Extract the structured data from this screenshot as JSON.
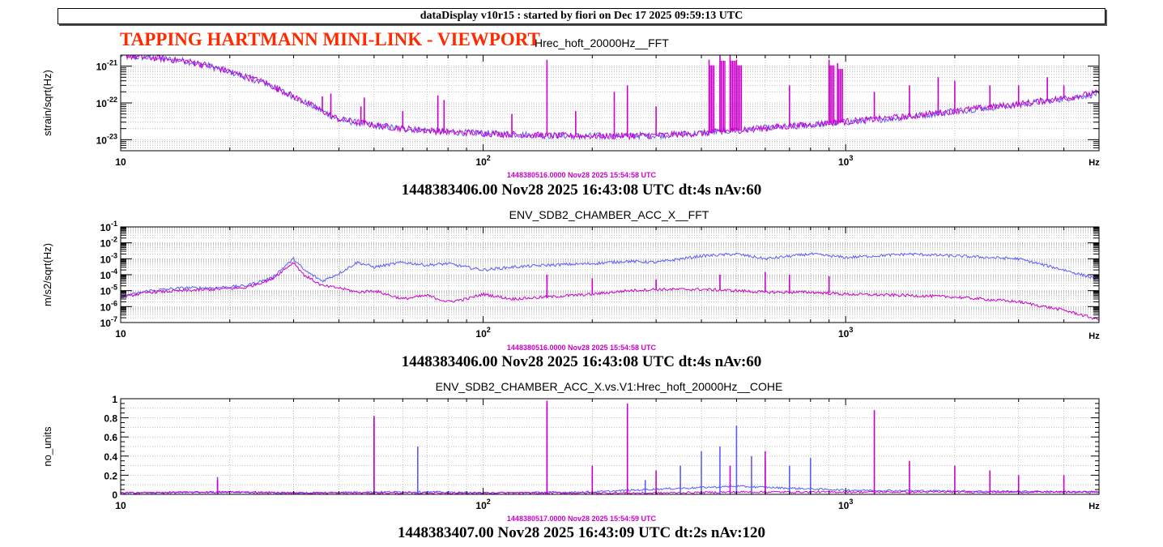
{
  "header": {
    "title_bar": "dataDisplay v10r15 : started by fiori on Dec 17 2025 09:59:13 UTC",
    "page_heading": "TAPPING HARTMANN MINI-LINK - VIEWPORT"
  },
  "colors": {
    "reference_trace": "#5b5bff",
    "live_trace": "#cc00cc",
    "heading": "#ff2a00"
  },
  "chart_data": [
    {
      "type": "line",
      "title": "Hrec_hoft_20000Hz__FFT",
      "ylabel": "strain/sqrt(Hz)",
      "x_unit": "Hz",
      "x_scale": "log",
      "y_scale": "log",
      "xlim": [
        10,
        5000
      ],
      "ylim": [
        5e-24,
        2e-21
      ],
      "x_tick_labels": [
        {
          "base": "10",
          "exp": ""
        },
        {
          "base": "10",
          "exp": "2"
        },
        {
          "base": "10",
          "exp": "3"
        }
      ],
      "y_tick_labels": [
        {
          "base": "10",
          "exp": "-21"
        },
        {
          "base": "10",
          "exp": "-22"
        },
        {
          "base": "10",
          "exp": "-23"
        }
      ],
      "grid": true,
      "series": [
        {
          "color": "#5b5bff",
          "x": [
            10,
            11,
            13,
            15,
            17,
            20,
            25,
            30,
            40,
            50,
            60,
            70,
            80,
            100,
            120,
            150,
            200,
            300,
            400,
            500,
            700,
            1000,
            1500,
            2000,
            3000,
            4000,
            5000
          ],
          "y": [
            2e-21,
            1.8e-21,
            1.6e-21,
            1.4e-21,
            1.1e-21,
            7e-22,
            3.5e-22,
            1.5e-22,
            3.5e-23,
            2.4e-23,
            2e-23,
            1.8e-23,
            1.6e-23,
            1.5e-23,
            1.4e-23,
            1.3e-23,
            1.25e-23,
            1.3e-23,
            1.5e-23,
            1.8e-23,
            2.3e-23,
            3e-23,
            4.2e-23,
            6e-23,
            9e-23,
            1.3e-22,
            1.8e-22
          ]
        },
        {
          "color": "#cc00cc",
          "x": [
            10,
            11,
            13,
            15,
            17,
            20,
            25,
            30,
            40,
            50,
            60,
            70,
            80,
            100,
            120,
            150,
            200,
            300,
            400,
            500,
            700,
            1000,
            1500,
            2000,
            3000,
            4000,
            5000
          ],
          "y": [
            2e-21,
            1.8e-21,
            1.6e-21,
            1.4e-21,
            1.1e-21,
            7e-22,
            3.6e-22,
            1.5e-22,
            3.6e-23,
            2.5e-23,
            2e-23,
            1.8e-23,
            1.6e-23,
            1.5e-23,
            1.4e-23,
            1.3e-23,
            1.25e-23,
            1.3e-23,
            1.5e-23,
            1.8e-23,
            2.3e-23,
            3.1e-23,
            4.3e-23,
            6.1e-23,
            9.2e-23,
            1.35e-22,
            1.9e-22
          ]
        }
      ],
      "lines_hz": [
        [
          16,
          1e-21
        ],
        [
          27,
          2e-22
        ],
        [
          36,
          1.5e-22
        ],
        [
          38,
          1.8e-22
        ],
        [
          46,
          8e-23
        ],
        [
          47,
          1.4e-22
        ],
        [
          60,
          6e-23
        ],
        [
          75,
          1.6e-22
        ],
        [
          78,
          1.2e-22
        ],
        [
          120,
          5e-23
        ],
        [
          150,
          1.5e-21
        ],
        [
          180,
          6e-23
        ],
        [
          230,
          2e-22
        ],
        [
          250,
          3e-22
        ],
        [
          300,
          8e-23
        ],
        [
          420,
          1.5e-21
        ],
        [
          450,
          2e-21
        ],
        [
          480,
          2e-21
        ],
        [
          500,
          1.5e-21
        ],
        [
          700,
          3e-22
        ],
        [
          900,
          1.5e-21
        ],
        [
          950,
          1.2e-21
        ],
        [
          1200,
          2e-22
        ],
        [
          1500,
          3e-22
        ],
        [
          1800,
          5e-22
        ],
        [
          2000,
          4e-22
        ],
        [
          2500,
          3e-22
        ],
        [
          3000,
          3e-22
        ],
        [
          3600,
          5e-22
        ],
        [
          4000,
          3e-22
        ]
      ],
      "timestamp_small": "1448380516.0000 Nov28 2025 15:54:58 UTC",
      "timestamp_big": "1448383406.00 Nov28 2025 16:43:08 UTC dt:4s nAv:60"
    },
    {
      "type": "line",
      "title": "ENV_SDB2_CHAMBER_ACC_X__FFT",
      "ylabel": "m/s2/sqrt(Hz)",
      "x_unit": "Hz",
      "x_scale": "log",
      "y_scale": "log",
      "xlim": [
        10,
        5000
      ],
      "ylim": [
        1e-07,
        0.1
      ],
      "x_tick_labels": [
        {
          "base": "10",
          "exp": ""
        },
        {
          "base": "10",
          "exp": "2"
        },
        {
          "base": "10",
          "exp": "3"
        }
      ],
      "y_tick_labels": [
        {
          "base": "10",
          "exp": "-1"
        },
        {
          "base": "10",
          "exp": "-2"
        },
        {
          "base": "10",
          "exp": "-3"
        },
        {
          "base": "10",
          "exp": "-4"
        },
        {
          "base": "10",
          "exp": "-5"
        },
        {
          "base": "10",
          "exp": "-6"
        },
        {
          "base": "10",
          "exp": "-7"
        }
      ],
      "grid": true,
      "series": [
        {
          "color": "#5b5bff",
          "x": [
            10,
            12,
            15,
            18,
            22,
            26,
            30,
            32,
            36,
            40,
            45,
            50,
            60,
            70,
            80,
            90,
            100,
            120,
            150,
            200,
            250,
            300,
            400,
            500,
            600,
            800,
            1000,
            1500,
            2000,
            3000,
            4000,
            5000
          ],
          "y": [
            4e-06,
            1e-05,
            1.5e-05,
            1.5e-05,
            2e-05,
            6e-05,
            0.001,
            0.0002,
            4e-05,
            0.00012,
            0.0006,
            0.0003,
            0.0006,
            0.0004,
            0.0005,
            0.0003,
            0.0002,
            0.0003,
            0.0004,
            0.0005,
            0.0007,
            0.0006,
            0.0015,
            0.002,
            0.001,
            0.002,
            0.0012,
            0.002,
            0.0015,
            0.001,
            0.0002,
            5e-05
          ]
        },
        {
          "color": "#cc00cc",
          "x": [
            10,
            12,
            15,
            18,
            22,
            26,
            30,
            32,
            36,
            40,
            45,
            50,
            60,
            70,
            80,
            90,
            100,
            120,
            150,
            200,
            250,
            300,
            400,
            500,
            600,
            800,
            1000,
            1500,
            2000,
            3000,
            4000,
            5000
          ],
          "y": [
            4e-06,
            8e-06,
            1e-05,
            1.2e-05,
            1.5e-05,
            5e-05,
            0.0006,
            0.0001,
            2e-05,
            1.5e-05,
            8e-06,
            1e-05,
            3e-06,
            5e-06,
            2e-06,
            3e-06,
            6e-06,
            3e-06,
            4e-06,
            6e-06,
            1e-05,
            1.2e-05,
            1.2e-05,
            1e-05,
            8e-06,
            8e-06,
            6e-06,
            5e-06,
            4e-06,
            2e-06,
            6e-07,
            1.5e-07
          ]
        }
      ],
      "lines_hz": [
        [
          150,
          0.0001
        ],
        [
          200,
          6e-05
        ],
        [
          300,
          5e-05
        ],
        [
          450,
          0.0001
        ],
        [
          600,
          0.00015
        ],
        [
          700,
          0.0001
        ],
        [
          900,
          8e-05
        ]
      ],
      "timestamp_small": "1448380516.0000 Nov28 2025 15:54:58 UTC",
      "timestamp_big": "1448383406.00 Nov28 2025 16:43:08 UTC dt:4s nAv:60"
    },
    {
      "type": "line",
      "title": "ENV_SDB2_CHAMBER_ACC_X.vs.V1:Hrec_hoft_20000Hz__COHE",
      "ylabel": "no_units",
      "x_unit": "Hz",
      "x_scale": "log",
      "y_scale": "linear",
      "xlim": [
        10,
        5000
      ],
      "ylim": [
        0,
        1
      ],
      "x_tick_labels": [
        {
          "base": "10",
          "exp": ""
        },
        {
          "base": "10",
          "exp": "2"
        },
        {
          "base": "10",
          "exp": "3"
        }
      ],
      "y_tick_labels": [
        {
          "base": "1",
          "exp": ""
        },
        {
          "base": "0.8",
          "exp": ""
        },
        {
          "base": "0.6",
          "exp": ""
        },
        {
          "base": "0.4",
          "exp": ""
        },
        {
          "base": "0.2",
          "exp": ""
        },
        {
          "base": "0",
          "exp": ""
        }
      ],
      "grid": true,
      "series": [
        {
          "color": "#5b5bff",
          "x": [
            10,
            20,
            30,
            50,
            70,
            100,
            200,
            300,
            500,
            1000,
            2000,
            5000
          ],
          "y": [
            0.01,
            0.02,
            0.01,
            0.02,
            0.02,
            0.01,
            0.02,
            0.05,
            0.08,
            0.04,
            0.03,
            0.02
          ]
        },
        {
          "color": "#cc00cc",
          "x": [
            10,
            20,
            30,
            50,
            70,
            100,
            200,
            300,
            500,
            1000,
            2000,
            5000
          ],
          "y": [
            0.01,
            0.02,
            0.01,
            0.01,
            0.01,
            0.01,
            0.01,
            0.01,
            0.02,
            0.02,
            0.02,
            0.02
          ]
        }
      ],
      "peaks_blue": [
        [
          18.5,
          0.18
        ],
        [
          50,
          0.8
        ],
        [
          66,
          0.5
        ],
        [
          150,
          0.95
        ],
        [
          280,
          0.15
        ],
        [
          350,
          0.3
        ],
        [
          400,
          0.45
        ],
        [
          450,
          0.5
        ],
        [
          500,
          0.72
        ],
        [
          550,
          0.4
        ],
        [
          600,
          0.35
        ],
        [
          700,
          0.3
        ],
        [
          800,
          0.38
        ]
      ],
      "peaks_magenta": [
        [
          18.5,
          0.15
        ],
        [
          50,
          0.82
        ],
        [
          150,
          0.98
        ],
        [
          200,
          0.3
        ],
        [
          250,
          0.95
        ],
        [
          300,
          0.25
        ],
        [
          480,
          0.3
        ],
        [
          600,
          0.45
        ],
        [
          1200,
          0.88
        ],
        [
          1500,
          0.35
        ],
        [
          2000,
          0.3
        ],
        [
          2500,
          0.25
        ],
        [
          3000,
          0.2
        ],
        [
          4000,
          0.2
        ]
      ],
      "timestamp_small": "1448380517.0000 Nov28 2025 15:54:59 UTC",
      "timestamp_big": "1448383407.00 Nov28 2025 16:43:09 UTC dt:2s nAv:120"
    }
  ]
}
